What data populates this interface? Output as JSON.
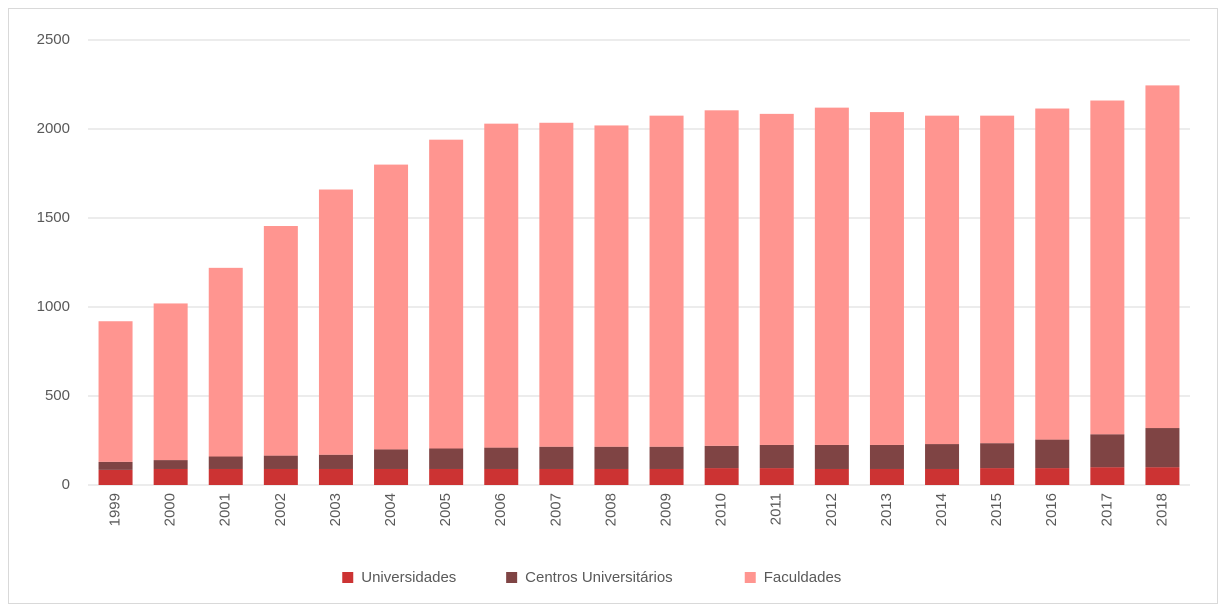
{
  "chart_data": {
    "type": "stacked_bar",
    "categories": [
      "1999",
      "2000",
      "2001",
      "2002",
      "2003",
      "2004",
      "2005",
      "2006",
      "2007",
      "2008",
      "2009",
      "2010",
      "2011",
      "2012",
      "2013",
      "2014",
      "2015",
      "2016",
      "2017",
      "2018"
    ],
    "series": [
      {
        "name": "Universidades",
        "color": "#cc3333",
        "values": [
          85,
          90,
          90,
          90,
          90,
          90,
          90,
          90,
          90,
          90,
          90,
          95,
          95,
          90,
          90,
          90,
          95,
          95,
          100,
          100
        ]
      },
      {
        "name": "Centros Universitários",
        "color": "#7f4444",
        "values": [
          45,
          50,
          70,
          75,
          80,
          110,
          115,
          120,
          125,
          125,
          125,
          125,
          130,
          135,
          135,
          140,
          140,
          160,
          185,
          220
        ]
      },
      {
        "name": "Faculdades",
        "color": "#ff9590",
        "values": [
          790,
          880,
          1060,
          1290,
          1490,
          1600,
          1735,
          1820,
          1820,
          1805,
          1860,
          1885,
          1860,
          1895,
          1870,
          1845,
          1840,
          1860,
          1875,
          1925
        ]
      }
    ],
    "ylim": [
      0,
      2500
    ],
    "yticks": [
      0,
      500,
      1000,
      1500,
      2000,
      2500
    ],
    "grid": true,
    "legend": "bottom"
  }
}
